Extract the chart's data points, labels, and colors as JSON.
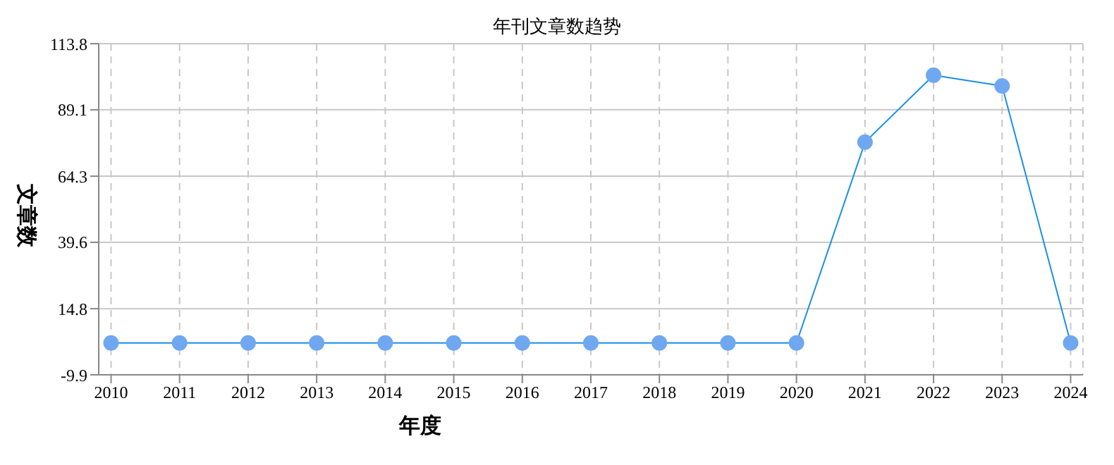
{
  "chart_data": {
    "type": "line",
    "title": "年刊文章数趋势",
    "xlabel": "年度",
    "ylabel": "文章数",
    "categories": [
      "2010",
      "2011",
      "2012",
      "2013",
      "2014",
      "2015",
      "2016",
      "2017",
      "2018",
      "2019",
      "2020",
      "2021",
      "2022",
      "2023",
      "2024"
    ],
    "series": [
      {
        "color": "#1a8fe8",
        "values": [
          2,
          2,
          2,
          2,
          2,
          2,
          2,
          2,
          2,
          2,
          2,
          77,
          102,
          98,
          2
        ]
      }
    ],
    "ylim": [
      -9.9,
      113.8
    ],
    "yticks": [
      -9.9,
      14.8,
      39.6,
      64.3,
      89.1,
      113.8
    ],
    "grid": true,
    "marker": "circle",
    "line_style": "solid",
    "legend": false
  }
}
